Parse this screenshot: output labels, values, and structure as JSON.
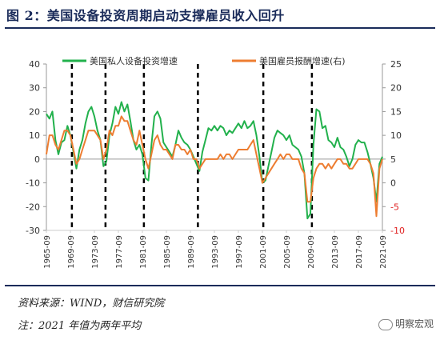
{
  "title": "图 2：美国设备投资周期启动支撑雇员收入回升",
  "source": "资料来源：WIND，财信研究院",
  "note": "注：2021 年值为两年平均",
  "watermark": "明察宏观",
  "colors": {
    "series1": "#22b14c",
    "series2": "#ed7d31",
    "axis": "#999999",
    "dash": "#000000"
  },
  "chart_data": {
    "type": "line",
    "legend_position": "top",
    "grid": false,
    "x_range": [
      1965.75,
      2021.75
    ],
    "xticks": [
      "1965-09",
      "1969-09",
      "1973-09",
      "1977-09",
      "1981-09",
      "1985-09",
      "1989-09",
      "1993-09",
      "1997-09",
      "2001-09",
      "2005-09",
      "2009-09",
      "2013-09",
      "2017-09",
      "2021-09"
    ],
    "y_left": {
      "ylim": [
        -30,
        40
      ],
      "ticks": [
        "-30",
        "-20",
        "-10",
        "0",
        "10",
        "20",
        "30",
        "40"
      ]
    },
    "y_right": {
      "ylim": [
        -10,
        25
      ],
      "ticks": [
        "-10",
        "-5",
        "0",
        "5",
        "10",
        "15",
        "20",
        "25"
      ]
    },
    "cycle_lines": [
      1970.0,
      1975.6,
      1982.0,
      1991.0,
      2001.9,
      2010.0
    ],
    "series": [
      {
        "name": "美国私人设备投资增速",
        "axis": "left",
        "points": [
          [
            1965.75,
            19
          ],
          [
            1966.25,
            17
          ],
          [
            1966.75,
            20
          ],
          [
            1967.25,
            8
          ],
          [
            1967.75,
            2
          ],
          [
            1968.25,
            7
          ],
          [
            1968.75,
            8
          ],
          [
            1969.25,
            14
          ],
          [
            1969.75,
            10
          ],
          [
            1970.25,
            3
          ],
          [
            1970.75,
            -4
          ],
          [
            1971.25,
            4
          ],
          [
            1971.75,
            8
          ],
          [
            1972.25,
            15
          ],
          [
            1972.75,
            20
          ],
          [
            1973.25,
            22
          ],
          [
            1973.75,
            18
          ],
          [
            1974.25,
            12
          ],
          [
            1974.75,
            8
          ],
          [
            1975.25,
            -3
          ],
          [
            1975.75,
            -1
          ],
          [
            1976.25,
            10
          ],
          [
            1976.75,
            15
          ],
          [
            1977.25,
            22
          ],
          [
            1977.75,
            19
          ],
          [
            1978.25,
            24
          ],
          [
            1978.75,
            20
          ],
          [
            1979.25,
            23
          ],
          [
            1979.75,
            16
          ],
          [
            1980.25,
            8
          ],
          [
            1980.75,
            4
          ],
          [
            1981.25,
            6
          ],
          [
            1981.75,
            2
          ],
          [
            1982.25,
            -8
          ],
          [
            1982.75,
            -9
          ],
          [
            1983.25,
            6
          ],
          [
            1983.75,
            18
          ],
          [
            1984.25,
            20
          ],
          [
            1984.75,
            17
          ],
          [
            1985.25,
            7
          ],
          [
            1985.75,
            5
          ],
          [
            1986.25,
            3
          ],
          [
            1986.75,
            1
          ],
          [
            1987.25,
            6
          ],
          [
            1987.75,
            12
          ],
          [
            1988.25,
            9
          ],
          [
            1988.75,
            7
          ],
          [
            1989.25,
            6
          ],
          [
            1989.75,
            4
          ],
          [
            1990.25,
            1
          ],
          [
            1990.75,
            -2
          ],
          [
            1991.25,
            -5
          ],
          [
            1991.75,
            3
          ],
          [
            1992.25,
            8
          ],
          [
            1992.75,
            13
          ],
          [
            1993.25,
            12
          ],
          [
            1993.75,
            14
          ],
          [
            1994.25,
            12
          ],
          [
            1994.75,
            14
          ],
          [
            1995.25,
            13
          ],
          [
            1995.75,
            10
          ],
          [
            1996.25,
            12
          ],
          [
            1996.75,
            11
          ],
          [
            1997.25,
            13
          ],
          [
            1997.75,
            15
          ],
          [
            1998.25,
            13
          ],
          [
            1998.75,
            16
          ],
          [
            1999.25,
            13
          ],
          [
            1999.75,
            14
          ],
          [
            2000.25,
            16
          ],
          [
            2000.75,
            10
          ],
          [
            2001.25,
            1
          ],
          [
            2001.75,
            -10
          ],
          [
            2002.25,
            -9
          ],
          [
            2002.75,
            -3
          ],
          [
            2003.25,
            3
          ],
          [
            2003.75,
            9
          ],
          [
            2004.25,
            12
          ],
          [
            2004.75,
            11
          ],
          [
            2005.25,
            10
          ],
          [
            2005.75,
            8
          ],
          [
            2006.25,
            10
          ],
          [
            2006.75,
            6
          ],
          [
            2007.25,
            5
          ],
          [
            2007.75,
            4
          ],
          [
            2008.25,
            1
          ],
          [
            2008.75,
            -6
          ],
          [
            2009.25,
            -25
          ],
          [
            2009.75,
            -23
          ],
          [
            2010.25,
            6
          ],
          [
            2010.75,
            21
          ],
          [
            2011.25,
            20
          ],
          [
            2011.75,
            13
          ],
          [
            2012.25,
            14
          ],
          [
            2012.75,
            8
          ],
          [
            2013.25,
            7
          ],
          [
            2013.75,
            5
          ],
          [
            2014.25,
            9
          ],
          [
            2014.75,
            5
          ],
          [
            2015.25,
            4
          ],
          [
            2015.75,
            1
          ],
          [
            2016.25,
            -3
          ],
          [
            2016.75,
            0
          ],
          [
            2017.25,
            6
          ],
          [
            2017.75,
            8
          ],
          [
            2018.25,
            7
          ],
          [
            2018.75,
            7
          ],
          [
            2019.25,
            3
          ],
          [
            2019.75,
            -2
          ],
          [
            2020.25,
            -8
          ],
          [
            2020.75,
            -18
          ],
          [
            2021.25,
            -2
          ],
          [
            2021.75,
            1
          ]
        ]
      },
      {
        "name": "美国雇员报酬增速(右)",
        "axis": "right",
        "points": [
          [
            1965.75,
            6
          ],
          [
            1966.25,
            10
          ],
          [
            1966.75,
            10
          ],
          [
            1967.25,
            8
          ],
          [
            1967.75,
            7
          ],
          [
            1968.25,
            9
          ],
          [
            1968.75,
            11
          ],
          [
            1969.25,
            11
          ],
          [
            1969.75,
            10
          ],
          [
            1970.25,
            7
          ],
          [
            1970.75,
            4
          ],
          [
            1971.25,
            5
          ],
          [
            1971.75,
            7
          ],
          [
            1972.25,
            9
          ],
          [
            1972.75,
            11
          ],
          [
            1973.25,
            11
          ],
          [
            1973.75,
            11
          ],
          [
            1974.25,
            10
          ],
          [
            1974.75,
            9
          ],
          [
            1975.25,
            5
          ],
          [
            1975.75,
            7
          ],
          [
            1976.25,
            11
          ],
          [
            1976.75,
            10
          ],
          [
            1977.25,
            12
          ],
          [
            1977.75,
            12
          ],
          [
            1978.25,
            14
          ],
          [
            1978.75,
            13
          ],
          [
            1979.25,
            13
          ],
          [
            1979.75,
            11
          ],
          [
            1980.25,
            9
          ],
          [
            1980.75,
            8
          ],
          [
            1981.25,
            11
          ],
          [
            1981.75,
            8
          ],
          [
            1982.25,
            5
          ],
          [
            1982.75,
            3
          ],
          [
            1983.25,
            6
          ],
          [
            1983.75,
            9
          ],
          [
            1984.25,
            10
          ],
          [
            1984.75,
            8
          ],
          [
            1985.25,
            7
          ],
          [
            1985.75,
            7
          ],
          [
            1986.25,
            6
          ],
          [
            1986.75,
            5
          ],
          [
            1987.25,
            8
          ],
          [
            1987.75,
            8
          ],
          [
            1988.25,
            7
          ],
          [
            1988.75,
            7
          ],
          [
            1989.25,
            6
          ],
          [
            1989.75,
            7
          ],
          [
            1990.25,
            5
          ],
          [
            1990.75,
            5
          ],
          [
            1991.25,
            3
          ],
          [
            1991.75,
            4
          ],
          [
            1992.25,
            5
          ],
          [
            1992.75,
            5
          ],
          [
            1993.25,
            5
          ],
          [
            1993.75,
            5
          ],
          [
            1994.25,
            5
          ],
          [
            1994.75,
            6
          ],
          [
            1995.25,
            5
          ],
          [
            1995.75,
            6
          ],
          [
            1996.25,
            6
          ],
          [
            1996.75,
            5
          ],
          [
            1997.25,
            6
          ],
          [
            1997.75,
            7
          ],
          [
            1998.25,
            7
          ],
          [
            1998.75,
            7
          ],
          [
            1999.25,
            7
          ],
          [
            1999.75,
            8
          ],
          [
            2000.25,
            9
          ],
          [
            2000.75,
            6
          ],
          [
            2001.25,
            3
          ],
          [
            2001.75,
            0
          ],
          [
            2002.25,
            1
          ],
          [
            2002.75,
            2
          ],
          [
            2003.25,
            3
          ],
          [
            2003.75,
            4
          ],
          [
            2004.25,
            5
          ],
          [
            2004.75,
            6
          ],
          [
            2005.25,
            5
          ],
          [
            2005.75,
            6
          ],
          [
            2006.25,
            6
          ],
          [
            2006.75,
            5
          ],
          [
            2007.25,
            5
          ],
          [
            2007.75,
            5
          ],
          [
            2008.25,
            3
          ],
          [
            2008.75,
            2
          ],
          [
            2009.25,
            -4
          ],
          [
            2009.75,
            -4
          ],
          [
            2010.25,
            1
          ],
          [
            2010.75,
            3
          ],
          [
            2011.25,
            4
          ],
          [
            2011.75,
            4
          ],
          [
            2012.25,
            3
          ],
          [
            2012.75,
            4
          ],
          [
            2013.25,
            3
          ],
          [
            2013.75,
            4
          ],
          [
            2014.25,
            5
          ],
          [
            2014.75,
            5
          ],
          [
            2015.25,
            4
          ],
          [
            2015.75,
            4
          ],
          [
            2016.25,
            3
          ],
          [
            2016.75,
            3
          ],
          [
            2017.25,
            4
          ],
          [
            2017.75,
            5
          ],
          [
            2018.25,
            5
          ],
          [
            2018.75,
            5
          ],
          [
            2019.25,
            5
          ],
          [
            2019.75,
            4
          ],
          [
            2020.25,
            2
          ],
          [
            2020.75,
            -7
          ],
          [
            2021.25,
            3
          ],
          [
            2021.75,
            5
          ]
        ]
      }
    ]
  }
}
